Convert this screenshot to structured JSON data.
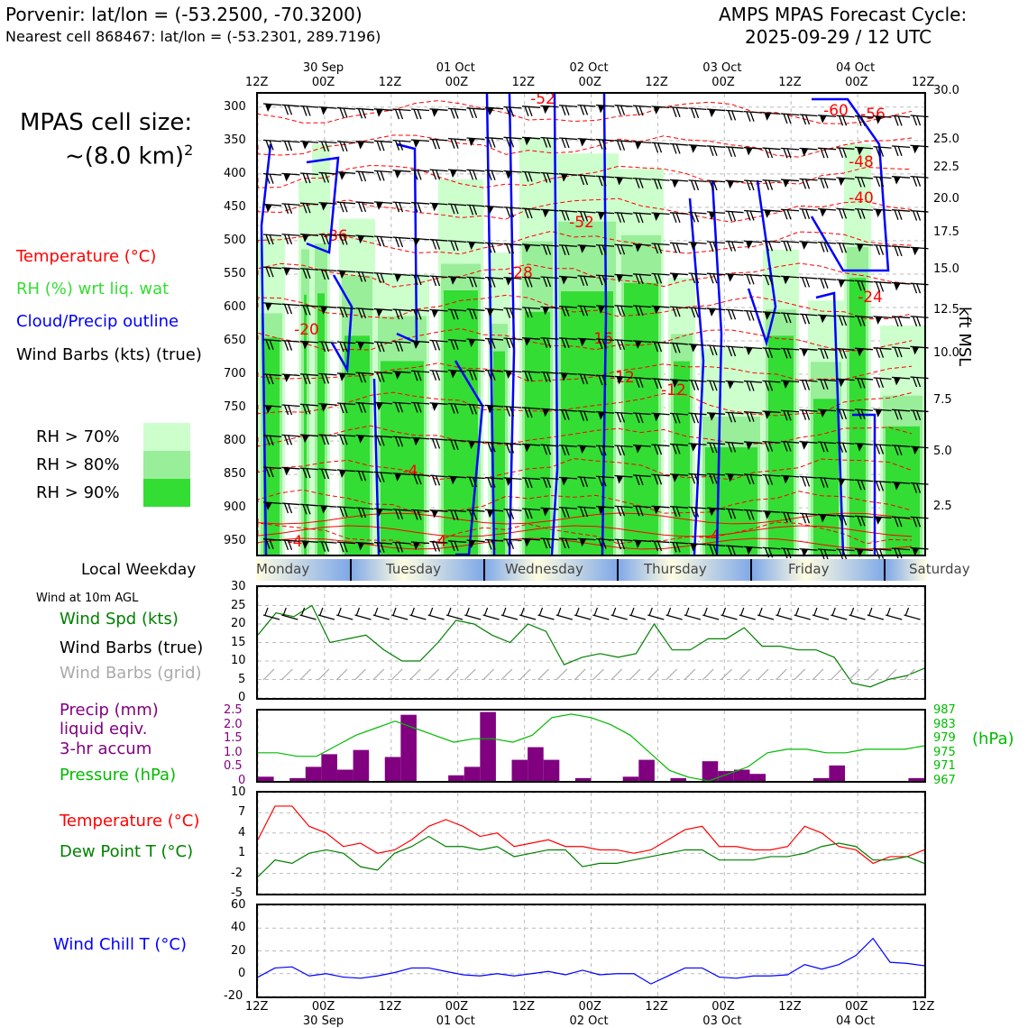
{
  "header": {
    "location": "Porvenir: lat/lon = (-53.2500, -70.3200)",
    "nearest_cell": "Nearest cell 868467: lat/lon = (-53.2301, 289.7196)",
    "cycle_title": "AMPS MPAS Forecast Cycle:",
    "cycle_time": "2025-09-29 / 12 UTC"
  },
  "time_axis": {
    "hours": [
      "12Z",
      "00Z",
      "12Z",
      "00Z",
      "12Z",
      "00Z",
      "12Z",
      "00Z",
      "12Z",
      "00Z",
      "12Z"
    ],
    "dates": [
      "",
      "30 Sep",
      "",
      "01 Oct",
      "",
      "02 Oct",
      "",
      "03 Oct",
      "",
      "04 Oct",
      ""
    ]
  },
  "legend": {
    "cell_size_line1": "MPAS cell size:",
    "cell_size_line2": "~(8.0 km)",
    "cell_size_exp": "2",
    "temperature": "Temperature (°C)",
    "rh": "RH (%) wrt liq. wat",
    "cloud": "Cloud/Precip outline",
    "wind_barbs": "Wind Barbs (kts) (true)",
    "rh70": "RH > 70%",
    "rh80": "RH > 80%",
    "rh90": "RH > 90%",
    "local_weekday": "Local Weekday",
    "wind_10m": "Wind at 10m AGL",
    "wind_spd": "Wind Spd (kts)",
    "wind_barbs_true": "Wind Barbs (true)",
    "wind_barbs_grid": "Wind Barbs (grid)",
    "precip_l1": "Precip (mm)",
    "precip_l2": "liquid eqiv.",
    "precip_l3": "3-hr accum",
    "pressure": "Pressure (hPa)",
    "pressure_unit": "(hPa)",
    "temp2": "Temperature (°C)",
    "dewpoint": "Dew Point T (°C)",
    "windchill": "Wind Chill T (°C)"
  },
  "colors": {
    "temperature": "#ff0000",
    "rh70": "#ccffcc",
    "rh80": "#99ee99",
    "rh90": "#33dd33",
    "cloud": "#0000ff",
    "wind_spd": "#008000",
    "pressure": "#00bb00",
    "precip": "#800080",
    "windchill": "#0000ff",
    "grid_barbs": "#aaaaaa"
  },
  "chart_data": [
    {
      "type": "heatmap",
      "name": "Vertical cross-section",
      "y_left_label": "",
      "y_left_ticks": [
        "300",
        "350",
        "400",
        "450",
        "500",
        "550",
        "600",
        "650",
        "700",
        "750",
        "800",
        "850",
        "900",
        "950"
      ],
      "y_right_label": "kft MSL",
      "y_right_ticks": [
        "30.0",
        "25.0",
        "22.5",
        "20.0",
        "17.5",
        "15.0",
        "12.5",
        "10.0",
        "7.5",
        "5.0",
        "2.5"
      ],
      "temperature_labels": [
        "-52",
        "-60",
        "-56",
        "-48",
        "-40",
        "-24",
        "-52",
        "-36",
        "-28",
        "-20",
        "-16",
        "-12",
        "-12",
        "-4",
        "-4",
        "-4",
        "-4"
      ]
    },
    {
      "type": "line",
      "name": "Wind speed 10m",
      "ylim": [
        0,
        30
      ],
      "y_ticks": [
        "0",
        "5",
        "10",
        "15",
        "20",
        "25",
        "30"
      ],
      "values": [
        17,
        23,
        22,
        25,
        15,
        16,
        17,
        13,
        10,
        10,
        15,
        21,
        20,
        17,
        15,
        20,
        18,
        9,
        11,
        12,
        11,
        12,
        20,
        13,
        13,
        16,
        16,
        19,
        14,
        14,
        13,
        13,
        11,
        4,
        3,
        5,
        6,
        8
      ]
    },
    {
      "type": "bar",
      "name": "Precip 3-hr accum",
      "ylim": [
        0,
        2.5
      ],
      "y_ticks": [
        "0",
        "0.5",
        "1.0",
        "1.5",
        "2.0",
        "2.5"
      ],
      "values": [
        0.15,
        0,
        0.1,
        0.5,
        0.95,
        0.4,
        1.1,
        0,
        0.85,
        2.35,
        0,
        0,
        0.2,
        0.5,
        2.45,
        0,
        0.75,
        1.2,
        0.75,
        0,
        0.1,
        0,
        0,
        0.15,
        0.75,
        0,
        0.1,
        0,
        0.7,
        0.35,
        0.4,
        0.25,
        0,
        0,
        0,
        0.1,
        0.55,
        0,
        0,
        0,
        0,
        0.1
      ]
    },
    {
      "type": "line",
      "name": "Pressure",
      "ylim": [
        967,
        987
      ],
      "y_ticks": [
        "967",
        "971",
        "975",
        "979",
        "983",
        "987"
      ],
      "values": [
        975,
        975,
        974,
        974,
        977,
        980,
        982,
        984,
        982,
        980,
        978,
        979,
        979,
        978,
        980,
        985,
        986,
        985,
        983,
        980,
        975,
        970,
        968,
        967,
        969,
        971,
        975,
        976,
        976,
        975,
        975,
        976,
        976,
        976,
        977
      ]
    },
    {
      "type": "line",
      "name": "Temperature / Dew point",
      "ylim": [
        -5,
        10
      ],
      "y_ticks": [
        "-5",
        "-2",
        "1",
        "4",
        "7",
        "10"
      ],
      "series": [
        {
          "name": "Temperature (°C)",
          "values": [
            3,
            8,
            8,
            5,
            4,
            2,
            2.5,
            1,
            1.5,
            3,
            5,
            6,
            5,
            3.5,
            4,
            2,
            2.5,
            3,
            2,
            2,
            1.5,
            1.5,
            1,
            1.5,
            3,
            4.5,
            5,
            2,
            2,
            1.5,
            1.5,
            2,
            5,
            4,
            2,
            1.5,
            -0.5,
            0.5,
            0.5,
            1.5
          ]
        },
        {
          "name": "Dew Point T (°C)",
          "values": [
            -2.5,
            0,
            -0.5,
            1,
            1.5,
            1,
            -1,
            -1.5,
            1,
            2,
            3.5,
            2,
            2,
            1.5,
            2,
            0.5,
            1,
            1.5,
            1.5,
            -1,
            -0.5,
            -0.5,
            0,
            0.5,
            1,
            1.5,
            1.5,
            0,
            0,
            0,
            0.5,
            0.5,
            1,
            2,
            2.5,
            2,
            0,
            0,
            0.5,
            -0.5
          ]
        }
      ]
    },
    {
      "type": "line",
      "name": "Wind chill",
      "ylim": [
        -20,
        60
      ],
      "y_ticks": [
        "-20",
        "0",
        "20",
        "40",
        "60"
      ],
      "values": [
        -3,
        5,
        6,
        -2,
        0,
        -3,
        -4,
        -2,
        1,
        5,
        5,
        2,
        -1,
        -2,
        0,
        -2,
        0,
        2,
        -1,
        3,
        -1,
        0,
        0,
        -9,
        -2,
        5,
        5,
        -3,
        -4,
        -2,
        -2,
        -1,
        8,
        4,
        8,
        16,
        31,
        10,
        9,
        7
      ]
    }
  ],
  "weekdays": [
    "Monday",
    "Tuesday",
    "Wednesday",
    "Thursday",
    "Friday",
    "Saturday"
  ]
}
